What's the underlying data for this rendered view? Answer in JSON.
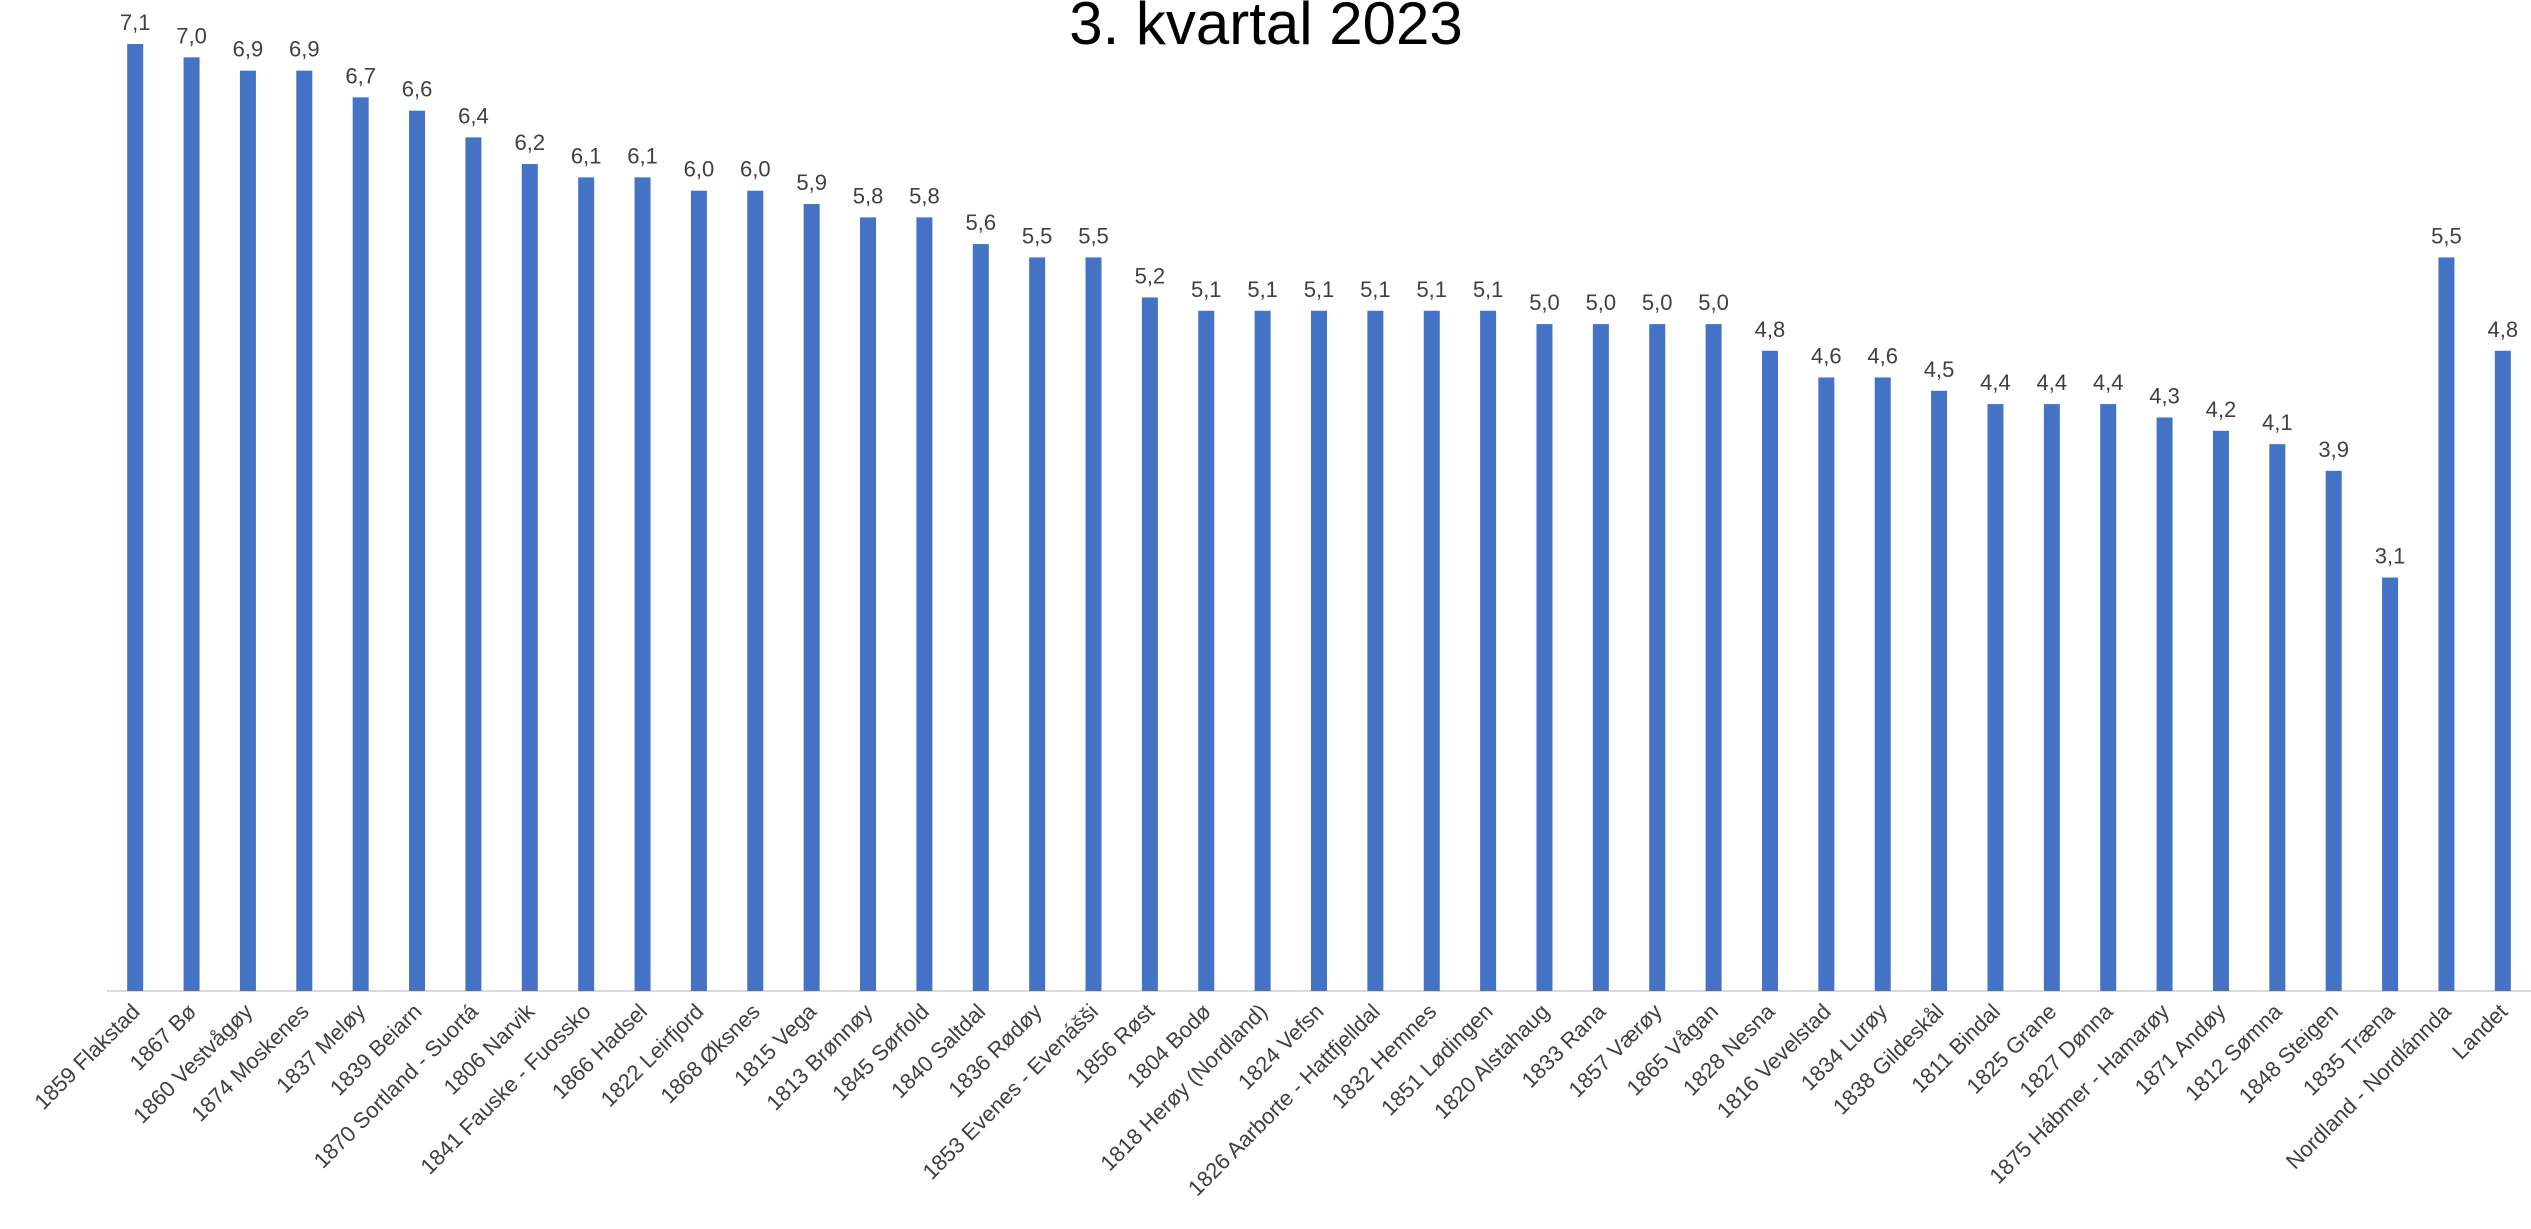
{
  "chart_data": {
    "type": "bar",
    "title": "3. kvartal 2023",
    "categories": [
      "1859 Flakstad",
      "1867 Bø",
      "1860 Vestvågøy",
      "1874 Moskenes",
      "1837 Meløy",
      "1839 Beiarn",
      "1870 Sortland - Suortá",
      "1806 Narvik",
      "1841 Fauske - Fuossko",
      "1866 Hadsel",
      "1822 Leirfjord",
      "1868 Øksnes",
      "1815 Vega",
      "1813 Brønnøy",
      "1845 Sørfold",
      "1840 Saltdal",
      "1836 Rødøy",
      "1853 Evenes - Evenášši",
      "1856 Røst",
      "1804 Bodø",
      "1818 Herøy (Nordland)",
      "1824 Vefsn",
      "1826 Aarborte - Hattfjelldal",
      "1832 Hemnes",
      "1851 Lødingen",
      "1820 Alstahaug",
      "1833 Rana",
      "1857 Værøy",
      "1865 Vågan",
      "1828 Nesna",
      "1816 Vevelstad",
      "1834 Lurøy",
      "1838 Gildeskål",
      "1811 Bindal",
      "1825 Grane",
      "1827 Dønna",
      "1875 Hábmer - Hamarøy",
      "1871 Andøy",
      "1812 Sømna",
      "1848 Steigen",
      "1835 Træna",
      "Nordland - Nordlánnda",
      "Landet"
    ],
    "values": [
      7.1,
      7.0,
      6.9,
      6.9,
      6.7,
      6.6,
      6.4,
      6.2,
      6.1,
      6.1,
      6.0,
      6.0,
      5.9,
      5.8,
      5.8,
      5.6,
      5.5,
      5.5,
      5.2,
      5.1,
      5.1,
      5.1,
      5.1,
      5.1,
      5.1,
      5.0,
      5.0,
      5.0,
      5.0,
      4.8,
      4.6,
      4.6,
      4.5,
      4.4,
      4.4,
      4.4,
      4.3,
      4.2,
      4.1,
      3.9,
      3.1,
      5.5,
      4.8
    ],
    "value_labels": [
      "7,1",
      "7,0",
      "6,9",
      "6,9",
      "6,7",
      "6,6",
      "6,4",
      "6,2",
      "6,1",
      "6,1",
      "6,0",
      "6,0",
      "5,9",
      "5,8",
      "5,8",
      "5,6",
      "5,5",
      "5,5",
      "5,2",
      "5,1",
      "5,1",
      "5,1",
      "5,1",
      "5,1",
      "5,1",
      "5,0",
      "5,0",
      "5,0",
      "5,0",
      "4,8",
      "4,6",
      "4,6",
      "4,5",
      "4,4",
      "4,4",
      "4,4",
      "4,3",
      "4,2",
      "4,1",
      "3,9",
      "3,1",
      "5,5",
      "4,8"
    ],
    "color": "#4472c4",
    "ylim": [
      0,
      7.1
    ]
  }
}
